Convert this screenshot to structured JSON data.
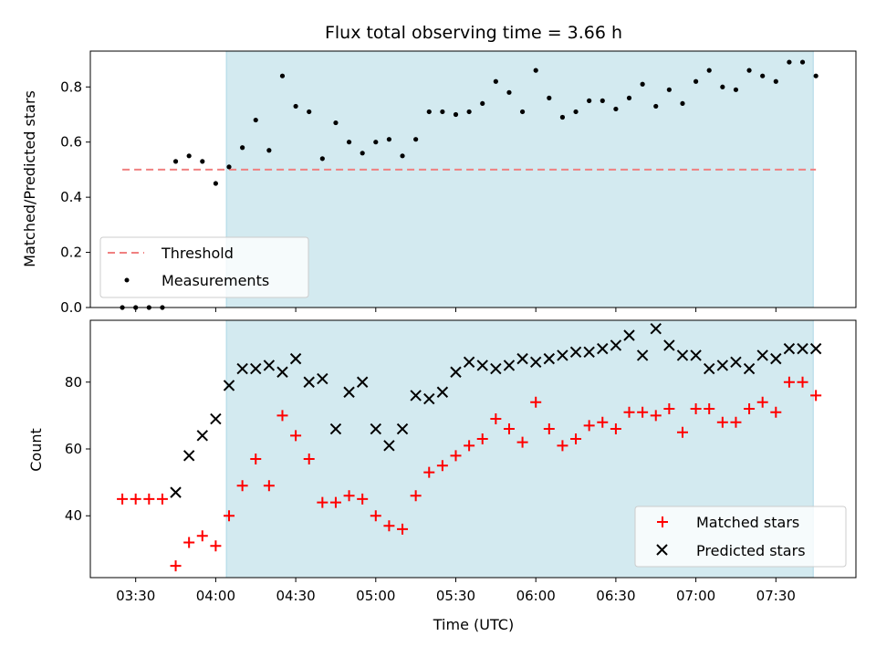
{
  "chart_data": [
    {
      "type": "scatter",
      "title": "Flux total observing time = 3.66 h",
      "ylabel": "Matched/Predicted stars",
      "xlim": [
        "03:13",
        "08:00"
      ],
      "ylim": [
        0,
        0.93
      ],
      "yticks": [
        "0.0",
        "0.2",
        "0.4",
        "0.6",
        "0.8"
      ],
      "shaded_region": {
        "x_start": "04:04",
        "x_end": "07:44",
        "color": "#d3eaf0"
      },
      "threshold": {
        "name": "Threshold",
        "y": 0.5,
        "x_start": "03:25",
        "x_end": "07:45",
        "color": "#f08080"
      },
      "legend_position": "lower-left",
      "series": [
        {
          "name": "Measurements",
          "marker": "dot",
          "color": "#000000",
          "x": [
            "03:25",
            "03:30",
            "03:35",
            "03:40",
            "03:45",
            "03:50",
            "03:55",
            "04:00",
            "04:05",
            "04:10",
            "04:15",
            "04:20",
            "04:25",
            "04:30",
            "04:35",
            "04:40",
            "04:45",
            "04:50",
            "04:55",
            "05:00",
            "05:05",
            "05:10",
            "05:15",
            "05:20",
            "05:25",
            "05:30",
            "05:35",
            "05:40",
            "05:45",
            "05:50",
            "05:55",
            "06:00",
            "06:05",
            "06:10",
            "06:15",
            "06:20",
            "06:25",
            "06:30",
            "06:35",
            "06:40",
            "06:45",
            "06:50",
            "06:55",
            "07:00",
            "07:05",
            "07:10",
            "07:15",
            "07:20",
            "07:25",
            "07:30",
            "07:35",
            "07:40",
            "07:45"
          ],
          "y": [
            0.0,
            0.0,
            0.0,
            0.0,
            0.53,
            0.55,
            0.53,
            0.45,
            0.51,
            0.58,
            0.68,
            0.57,
            0.84,
            0.73,
            0.71,
            0.54,
            0.67,
            0.6,
            0.56,
            0.6,
            0.61,
            0.55,
            0.61,
            0.71,
            0.71,
            0.7,
            0.71,
            0.74,
            0.82,
            0.78,
            0.71,
            0.86,
            0.76,
            0.69,
            0.71,
            0.75,
            0.75,
            0.72,
            0.76,
            0.81,
            0.73,
            0.79,
            0.74,
            0.82,
            0.86,
            0.8,
            0.79,
            0.86,
            0.84,
            0.82,
            0.89,
            0.89,
            0.84
          ]
        }
      ]
    },
    {
      "type": "scatter",
      "xlabel": "Time (UTC)",
      "ylabel": "Count",
      "xlim": [
        "03:13",
        "08:00"
      ],
      "ylim": [
        21.5,
        98.5
      ],
      "yticks": [
        "40",
        "60",
        "80"
      ],
      "xticks": [
        "03:30",
        "04:00",
        "04:30",
        "05:00",
        "05:30",
        "06:00",
        "06:30",
        "07:00",
        "07:30"
      ],
      "shaded_region": {
        "x_start": "04:04",
        "x_end": "07:44",
        "color": "#d3eaf0"
      },
      "legend_position": "lower-right",
      "series": [
        {
          "name": "Matched stars",
          "marker": "plus",
          "color": "#ff0000",
          "x": [
            "03:25",
            "03:30",
            "03:35",
            "03:40",
            "03:45",
            "03:50",
            "03:55",
            "04:00",
            "04:05",
            "04:10",
            "04:15",
            "04:20",
            "04:25",
            "04:30",
            "04:35",
            "04:40",
            "04:45",
            "04:50",
            "04:55",
            "05:00",
            "05:05",
            "05:10",
            "05:15",
            "05:20",
            "05:25",
            "05:30",
            "05:35",
            "05:40",
            "05:45",
            "05:50",
            "05:55",
            "06:00",
            "06:05",
            "06:10",
            "06:15",
            "06:20",
            "06:25",
            "06:30",
            "06:35",
            "06:40",
            "06:45",
            "06:50",
            "06:55",
            "07:00",
            "07:05",
            "07:10",
            "07:15",
            "07:20",
            "07:25",
            "07:30",
            "07:35",
            "07:40",
            "07:45"
          ],
          "y": [
            45,
            45,
            45,
            45,
            25,
            32,
            34,
            31,
            40,
            49,
            57,
            49,
            70,
            64,
            57,
            44,
            44,
            46,
            45,
            40,
            37,
            36,
            46,
            53,
            55,
            58,
            61,
            63,
            69,
            66,
            62,
            74,
            66,
            61,
            63,
            67,
            68,
            66,
            71,
            71,
            70,
            72,
            65,
            72,
            72,
            68,
            68,
            72,
            74,
            71,
            80,
            80,
            76
          ]
        },
        {
          "name": "Predicted stars",
          "marker": "x",
          "color": "#000000",
          "x": [
            "03:45",
            "03:50",
            "03:55",
            "04:00",
            "04:05",
            "04:10",
            "04:15",
            "04:20",
            "04:25",
            "04:30",
            "04:35",
            "04:40",
            "04:45",
            "04:50",
            "04:55",
            "05:00",
            "05:05",
            "05:10",
            "05:15",
            "05:20",
            "05:25",
            "05:30",
            "05:35",
            "05:40",
            "05:45",
            "05:50",
            "05:55",
            "06:00",
            "06:05",
            "06:10",
            "06:15",
            "06:20",
            "06:25",
            "06:30",
            "06:35",
            "06:40",
            "06:45",
            "06:50",
            "06:55",
            "07:00",
            "07:05",
            "07:10",
            "07:15",
            "07:20",
            "07:25",
            "07:30",
            "07:35",
            "07:40",
            "07:45"
          ],
          "y": [
            47,
            58,
            64,
            69,
            79,
            84,
            84,
            85,
            83,
            87,
            80,
            81,
            66,
            77,
            80,
            66,
            61,
            66,
            76,
            75,
            77,
            83,
            86,
            85,
            84,
            85,
            87,
            86,
            87,
            88,
            89,
            89,
            90,
            91,
            94,
            88,
            96,
            91,
            88,
            88,
            84,
            85,
            86,
            84,
            88,
            87,
            90,
            90,
            90
          ]
        }
      ]
    }
  ]
}
